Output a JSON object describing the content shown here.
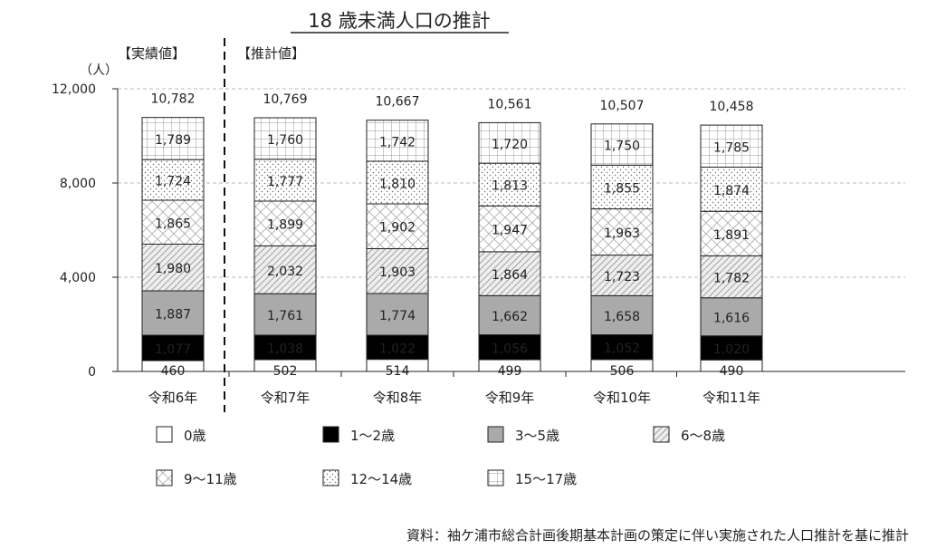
{
  "chart_data": {
    "type": "bar",
    "stacked": true,
    "title": "18 歳未満人口の推計",
    "ylabel": "（人）",
    "ylim": [
      0,
      12000
    ],
    "yticks": [
      0,
      4000,
      8000,
      12000
    ],
    "ytick_labels": [
      "0",
      "4,000",
      "8,000",
      "12,000"
    ],
    "grid": true,
    "section_labels": {
      "actual": "【実績値】",
      "estimate": "【推計値】"
    },
    "categories": [
      "令和6年",
      "令和7年",
      "令和8年",
      "令和9年",
      "令和10年",
      "令和11年"
    ],
    "totals": [
      10782,
      10769,
      10667,
      10561,
      10507,
      10458
    ],
    "total_labels": [
      "10,782",
      "10,769",
      "10,667",
      "10,561",
      "10,507",
      "10,458"
    ],
    "series": [
      {
        "name": "0歳",
        "pattern": "white",
        "values": [
          460,
          502,
          514,
          499,
          506,
          490
        ]
      },
      {
        "name": "1～2歳",
        "pattern": "black",
        "values": [
          1077,
          1038,
          1022,
          1056,
          1052,
          1020
        ]
      },
      {
        "name": "3～5歳",
        "pattern": "gray",
        "values": [
          1887,
          1761,
          1774,
          1662,
          1658,
          1616
        ]
      },
      {
        "name": "6～8歳",
        "pattern": "diagonal",
        "values": [
          1980,
          2032,
          1903,
          1864,
          1723,
          1782
        ]
      },
      {
        "name": "9～11歳",
        "pattern": "lattice",
        "values": [
          1865,
          1899,
          1902,
          1947,
          1963,
          1891
        ]
      },
      {
        "name": "12～14歳",
        "pattern": "dots",
        "values": [
          1724,
          1777,
          1810,
          1813,
          1855,
          1874
        ]
      },
      {
        "name": "15～17歳",
        "pattern": "grid",
        "values": [
          1789,
          1760,
          1742,
          1720,
          1750,
          1785
        ]
      }
    ],
    "legend_position": "bottom",
    "source": "資料：袖ケ浦市総合計画後期基本計画の策定に伴い実施された人口推計を基に推計"
  }
}
